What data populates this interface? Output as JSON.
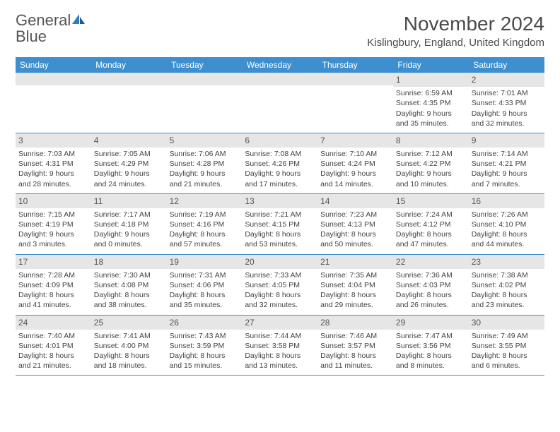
{
  "logo": {
    "text1": "General",
    "text2": "Blue"
  },
  "title": "November 2024",
  "location": "Kislingbury, England, United Kingdom",
  "colors": {
    "header_bg": "#3d8fcf",
    "header_text": "#ffffff",
    "daynum_bg": "#e6e6e6",
    "border": "#3d8fcf",
    "logo_blue": "#2f7ac4",
    "text": "#444444"
  },
  "weekdays": [
    "Sunday",
    "Monday",
    "Tuesday",
    "Wednesday",
    "Thursday",
    "Friday",
    "Saturday"
  ],
  "weeks": [
    [
      null,
      null,
      null,
      null,
      null,
      {
        "d": "1",
        "r": "6:59 AM",
        "s": "4:35 PM",
        "h": "9",
        "m": "35"
      },
      {
        "d": "2",
        "r": "7:01 AM",
        "s": "4:33 PM",
        "h": "9",
        "m": "32"
      }
    ],
    [
      {
        "d": "3",
        "r": "7:03 AM",
        "s": "4:31 PM",
        "h": "9",
        "m": "28"
      },
      {
        "d": "4",
        "r": "7:05 AM",
        "s": "4:29 PM",
        "h": "9",
        "m": "24"
      },
      {
        "d": "5",
        "r": "7:06 AM",
        "s": "4:28 PM",
        "h": "9",
        "m": "21"
      },
      {
        "d": "6",
        "r": "7:08 AM",
        "s": "4:26 PM",
        "h": "9",
        "m": "17"
      },
      {
        "d": "7",
        "r": "7:10 AM",
        "s": "4:24 PM",
        "h": "9",
        "m": "14"
      },
      {
        "d": "8",
        "r": "7:12 AM",
        "s": "4:22 PM",
        "h": "9",
        "m": "10"
      },
      {
        "d": "9",
        "r": "7:14 AM",
        "s": "4:21 PM",
        "h": "9",
        "m": "7"
      }
    ],
    [
      {
        "d": "10",
        "r": "7:15 AM",
        "s": "4:19 PM",
        "h": "9",
        "m": "3"
      },
      {
        "d": "11",
        "r": "7:17 AM",
        "s": "4:18 PM",
        "h": "9",
        "m": "0"
      },
      {
        "d": "12",
        "r": "7:19 AM",
        "s": "4:16 PM",
        "h": "8",
        "m": "57"
      },
      {
        "d": "13",
        "r": "7:21 AM",
        "s": "4:15 PM",
        "h": "8",
        "m": "53"
      },
      {
        "d": "14",
        "r": "7:23 AM",
        "s": "4:13 PM",
        "h": "8",
        "m": "50"
      },
      {
        "d": "15",
        "r": "7:24 AM",
        "s": "4:12 PM",
        "h": "8",
        "m": "47"
      },
      {
        "d": "16",
        "r": "7:26 AM",
        "s": "4:10 PM",
        "h": "8",
        "m": "44"
      }
    ],
    [
      {
        "d": "17",
        "r": "7:28 AM",
        "s": "4:09 PM",
        "h": "8",
        "m": "41"
      },
      {
        "d": "18",
        "r": "7:30 AM",
        "s": "4:08 PM",
        "h": "8",
        "m": "38"
      },
      {
        "d": "19",
        "r": "7:31 AM",
        "s": "4:06 PM",
        "h": "8",
        "m": "35"
      },
      {
        "d": "20",
        "r": "7:33 AM",
        "s": "4:05 PM",
        "h": "8",
        "m": "32"
      },
      {
        "d": "21",
        "r": "7:35 AM",
        "s": "4:04 PM",
        "h": "8",
        "m": "29"
      },
      {
        "d": "22",
        "r": "7:36 AM",
        "s": "4:03 PM",
        "h": "8",
        "m": "26"
      },
      {
        "d": "23",
        "r": "7:38 AM",
        "s": "4:02 PM",
        "h": "8",
        "m": "23"
      }
    ],
    [
      {
        "d": "24",
        "r": "7:40 AM",
        "s": "4:01 PM",
        "h": "8",
        "m": "21"
      },
      {
        "d": "25",
        "r": "7:41 AM",
        "s": "4:00 PM",
        "h": "8",
        "m": "18"
      },
      {
        "d": "26",
        "r": "7:43 AM",
        "s": "3:59 PM",
        "h": "8",
        "m": "15"
      },
      {
        "d": "27",
        "r": "7:44 AM",
        "s": "3:58 PM",
        "h": "8",
        "m": "13"
      },
      {
        "d": "28",
        "r": "7:46 AM",
        "s": "3:57 PM",
        "h": "8",
        "m": "11"
      },
      {
        "d": "29",
        "r": "7:47 AM",
        "s": "3:56 PM",
        "h": "8",
        "m": "8"
      },
      {
        "d": "30",
        "r": "7:49 AM",
        "s": "3:55 PM",
        "h": "8",
        "m": "6"
      }
    ]
  ]
}
